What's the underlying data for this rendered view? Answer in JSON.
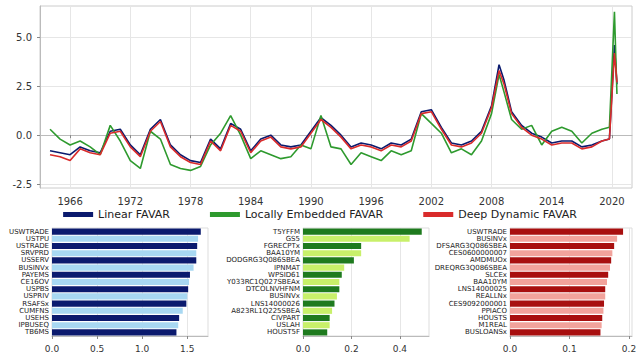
{
  "chart_data": [
    {
      "type": "line",
      "x": [
        1964,
        1965,
        1966,
        1967,
        1968,
        1969,
        1970,
        1971,
        1972,
        1973,
        1974,
        1975,
        1976,
        1977,
        1978,
        1979,
        1980,
        1981,
        1982,
        1983,
        1984,
        1985,
        1986,
        1987,
        1988,
        1989,
        1990,
        1991,
        1992,
        1993,
        1994,
        1995,
        1996,
        1997,
        1998,
        1999,
        2000,
        2001,
        2002,
        2003,
        2004,
        2005,
        2006,
        2007,
        2008,
        2008.75,
        2009.25,
        2010,
        2011,
        2012,
        2013,
        2014,
        2015,
        2016,
        2017,
        2018,
        2019,
        2019.75,
        2020.25,
        2020.5
      ],
      "xlim": [
        1963,
        2022
      ],
      "xticks": [
        1966,
        1972,
        1978,
        1984,
        1990,
        1996,
        2002,
        2008,
        2014,
        2020
      ],
      "ylim": [
        -2.7,
        6.6
      ],
      "yticks": [
        {
          "value": -2.5,
          "label": "-2.5"
        },
        {
          "value": 0,
          "label": "0.0"
        },
        {
          "value": 2.5,
          "label": "2.5"
        },
        {
          "value": 5,
          "label": "5.0"
        }
      ],
      "grid": true,
      "legend": "bottom",
      "series": [
        {
          "name": "Linear FAVAR",
          "color": "#0b1a6e",
          "values": [
            -0.8,
            -0.9,
            -1.0,
            -0.6,
            -0.8,
            -0.9,
            0.2,
            0.3,
            -0.5,
            -1.0,
            0.3,
            0.8,
            -0.5,
            -1.0,
            -1.3,
            -1.4,
            -0.2,
            -0.7,
            0.6,
            0.3,
            -0.8,
            -0.2,
            0.0,
            -0.5,
            -0.6,
            -0.5,
            0.2,
            0.9,
            0.5,
            0.0,
            -0.6,
            -0.4,
            -0.5,
            -0.7,
            -0.4,
            -0.5,
            -0.2,
            1.2,
            1.3,
            0.4,
            -0.4,
            -0.5,
            -0.3,
            0.2,
            1.5,
            3.6,
            2.8,
            1.2,
            0.5,
            0.1,
            -0.1,
            -0.4,
            -0.3,
            -0.3,
            -0.6,
            -0.5,
            -0.3,
            -0.2,
            4.6,
            2.6
          ]
        },
        {
          "name": "Locally Embedded FAVAR",
          "color": "#2e9a2e",
          "values": [
            0.3,
            -0.2,
            -0.5,
            -0.3,
            -0.6,
            -1.0,
            0.5,
            -0.3,
            -1.3,
            -1.7,
            0.2,
            -0.2,
            -1.5,
            -1.7,
            -1.8,
            -1.6,
            -0.5,
            0.1,
            1.0,
            0.0,
            -1.2,
            -0.8,
            -1.0,
            -1.2,
            -1.1,
            -0.5,
            -0.7,
            1.0,
            -0.6,
            -0.7,
            -1.5,
            -0.9,
            -1.1,
            -1.3,
            -0.8,
            -1.0,
            -0.8,
            1.1,
            0.6,
            0.1,
            -0.9,
            -0.7,
            -1.0,
            -0.3,
            1.1,
            3.1,
            2.2,
            0.8,
            0.3,
            0.5,
            -0.5,
            0.2,
            0.4,
            0.2,
            -0.4,
            0.1,
            0.3,
            0.4,
            6.3,
            2.1
          ]
        },
        {
          "name": "Deep Dynamic FAVAR",
          "color": "#d92b2b",
          "values": [
            -1.0,
            -1.1,
            -1.3,
            -0.7,
            -0.9,
            -1.0,
            0.1,
            0.2,
            -0.6,
            -1.1,
            0.2,
            0.7,
            -0.6,
            -1.1,
            -1.4,
            -1.5,
            -0.3,
            -0.8,
            0.5,
            0.2,
            -0.9,
            -0.3,
            -0.1,
            -0.6,
            -0.7,
            -0.6,
            0.1,
            0.8,
            0.4,
            -0.1,
            -0.7,
            -0.5,
            -0.6,
            -0.8,
            -0.5,
            -0.6,
            -0.3,
            1.1,
            1.2,
            0.3,
            -0.5,
            -0.6,
            -0.4,
            0.1,
            1.4,
            3.3,
            2.6,
            1.1,
            0.4,
            0.0,
            -0.2,
            -0.5,
            -0.4,
            -0.4,
            -0.7,
            -0.6,
            -0.3,
            -0.2,
            4.2,
            2.7
          ]
        }
      ]
    },
    {
      "type": "bar",
      "orientation": "horizontal",
      "grid": true,
      "categories": [
        "USWTRADE",
        "USTPU",
        "USTRADE",
        "SRVPRD",
        "USSERV",
        "BUSINVx",
        "PAYEMS",
        "CE16OV",
        "USPBS",
        "USPRIV",
        "RSAFSx",
        "CUMFNS",
        "USEHS",
        "IPBUSEQ",
        "TB6MS"
      ],
      "values": [
        1.65,
        1.62,
        1.61,
        1.6,
        1.6,
        1.57,
        1.53,
        1.52,
        1.51,
        1.5,
        1.49,
        1.45,
        1.41,
        1.4,
        1.38
      ],
      "colors": [
        "#0b1a6e",
        "#a8d8f2",
        "#0b1a6e",
        "#a8d8f2",
        "#0b1a6e",
        "#a8d8f2",
        "#0b1a6e",
        "#a8d8f2",
        "#0b1a6e",
        "#a8d8f2",
        "#0b1a6e",
        "#a8d8f2",
        "#0b1a6e",
        "#a8d8f2",
        "#0b1a6e"
      ],
      "xlim": [
        0,
        1.73
      ],
      "xticks": [
        {
          "value": 0,
          "label": "0.0"
        },
        0.5,
        {
          "value": 1,
          "label": "1.0"
        },
        1.5
      ]
    },
    {
      "type": "bar",
      "orientation": "horizontal",
      "grid": true,
      "categories": [
        "T5YFFM",
        "GS5",
        "FGRECPTx",
        "BAA10YM",
        "DODGRG3Q086SBEA",
        "IPNMAT",
        "WPSID61",
        "Y033RC1Q027SBEAx",
        "DTCOLNVHFNM",
        "BUSINVx",
        "LNS14000026",
        "A823RL1Q225SBEA",
        "CIVPART",
        "USLAH",
        "HOUST5F"
      ],
      "values": [
        0.49,
        0.44,
        0.24,
        0.24,
        0.21,
        0.17,
        0.16,
        0.15,
        0.15,
        0.14,
        0.13,
        0.12,
        0.11,
        0.11,
        0.1
      ],
      "colors": [
        "#1e7a1e",
        "#c8f06a",
        "#1e7a1e",
        "#c8f06a",
        "#1e7a1e",
        "#c8f06a",
        "#1e7a1e",
        "#c8f06a",
        "#1e7a1e",
        "#c8f06a",
        "#1e7a1e",
        "#c8f06a",
        "#1e7a1e",
        "#c8f06a",
        "#1e7a1e"
      ],
      "xlim": [
        0,
        0.52
      ],
      "xticks": [
        {
          "value": 0,
          "label": "0.0"
        },
        0.2,
        0.4
      ]
    },
    {
      "type": "bar",
      "orientation": "horizontal",
      "grid": true,
      "categories": [
        "USWTRADE",
        "BUSINVx",
        "DFSARG3Q086SBEA",
        "CES0600000007",
        "AMDMUOx",
        "DREQRG3Q086SBEA",
        "SLCEx",
        "BAA10YM",
        "LNS14000025",
        "REALLNx",
        "CES9092000001",
        "PPIACO",
        "HOUSTS",
        "M1REAL",
        "BUSLOANSx"
      ],
      "values": [
        0.19,
        0.18,
        0.175,
        0.172,
        0.17,
        0.168,
        0.165,
        0.163,
        0.16,
        0.16,
        0.158,
        0.157,
        0.155,
        0.154,
        0.152
      ],
      "colors": [
        "#a80f0f",
        "#f2a39c",
        "#a80f0f",
        "#f2a39c",
        "#a80f0f",
        "#f2a39c",
        "#a80f0f",
        "#f2a39c",
        "#a80f0f",
        "#f2a39c",
        "#a80f0f",
        "#f2a39c",
        "#a80f0f",
        "#f2a39c",
        "#a80f0f"
      ],
      "xlim": [
        0,
        0.205
      ],
      "xticks": [
        {
          "value": 0,
          "label": "0.0"
        },
        0.1,
        0.2
      ]
    }
  ]
}
